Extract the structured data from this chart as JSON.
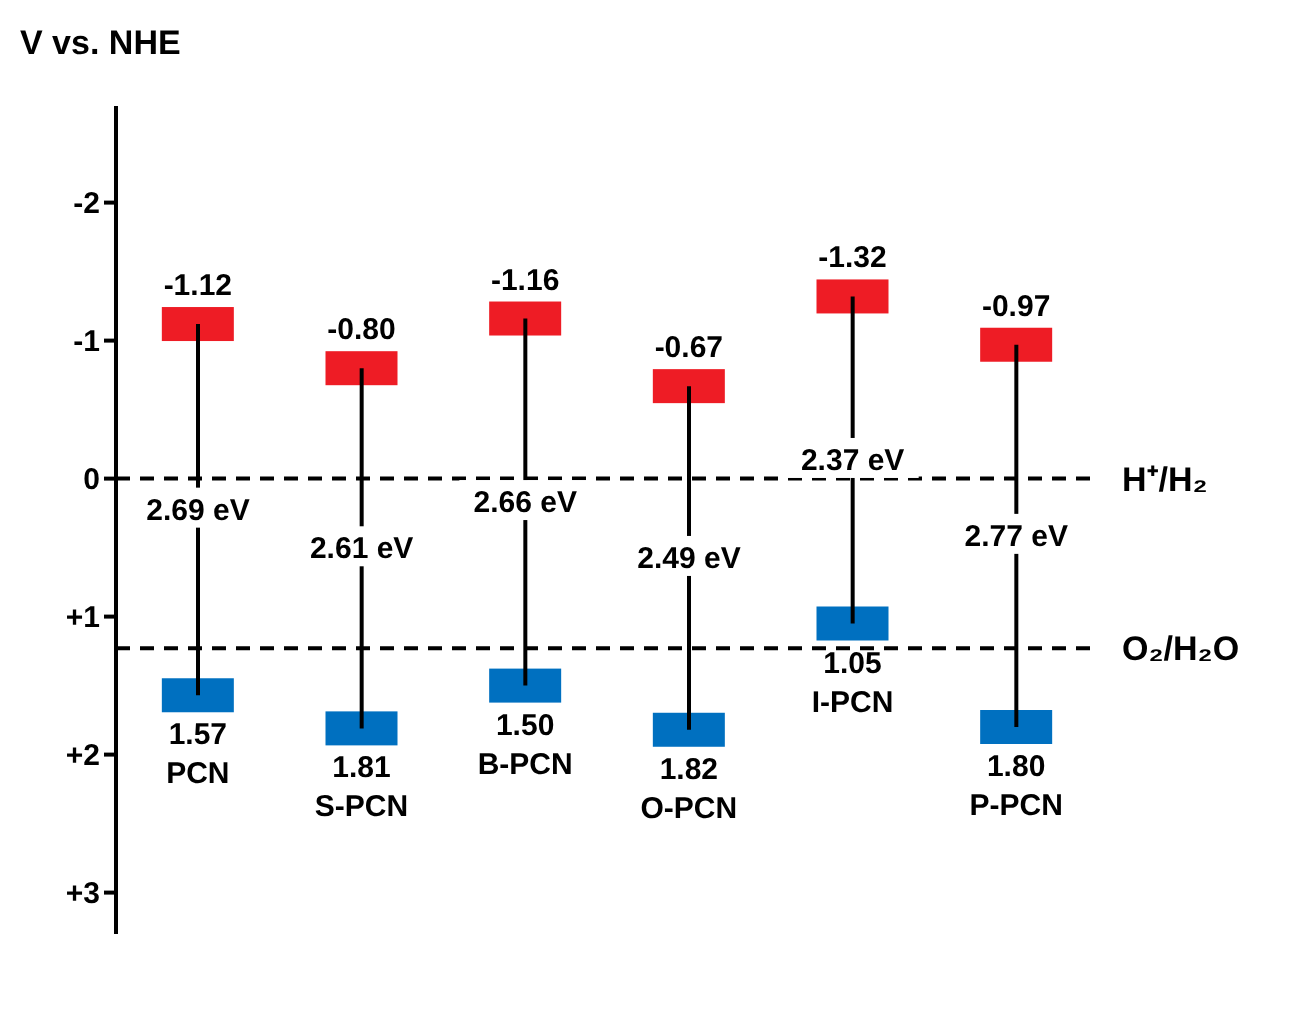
{
  "chart_data": {
    "type": "bar",
    "ylabel": "V vs. NHE",
    "categories": [
      "PCN",
      "S-PCN",
      "B-PCN",
      "O-PCN",
      "I-PCN",
      "P-PCN"
    ],
    "series": [
      {
        "type": "bar",
        "color": "#000000",
        "base": [
          -1.12,
          -0.8,
          -1.16,
          -0.67,
          -1.32,
          -0.97
        ],
        "values": [
          2.69,
          2.61,
          2.66,
          2.49,
          2.37,
          2.77
        ],
        "value_labels": [
          "2.69 eV",
          "2.61 eV",
          "2.66 eV",
          "2.49 eV",
          "2.37 eV",
          "2.77 eV"
        ]
      },
      {
        "type": "scatter",
        "color": "#ee1c25",
        "marker": "square",
        "values": [
          -1.12,
          -0.8,
          -1.16,
          -0.67,
          -1.32,
          -0.97
        ],
        "value_labels": [
          "-1.12",
          "-0.80",
          "-1.16",
          "-0.67",
          "-1.32",
          "-0.97"
        ]
      },
      {
        "type": "scatter",
        "color": "#0070c0",
        "marker": "square",
        "values": [
          1.57,
          1.81,
          1.5,
          1.82,
          1.05,
          1.8
        ],
        "value_labels": [
          "1.57",
          "1.81",
          "1.50",
          "1.82",
          "1.05",
          "1.80"
        ]
      }
    ],
    "ylim": [
      3.3,
      -2.7
    ],
    "yticks": [
      {
        "value": -2,
        "label": "-2"
      },
      {
        "value": -1,
        "label": "-1"
      },
      0,
      {
        "value": 1,
        "label": "+1"
      },
      {
        "value": 2,
        "label": "+2"
      },
      {
        "value": 3,
        "label": "+3"
      }
    ],
    "ref_lines": [
      {
        "axis": "y",
        "value": 0,
        "label": "H⁺/H₂",
        "line_style": "dashed"
      },
      {
        "axis": "y",
        "value": 1.23,
        "label": "O₂/H₂O",
        "line_style": "dashed"
      }
    ],
    "grid": false,
    "legend": false
  }
}
